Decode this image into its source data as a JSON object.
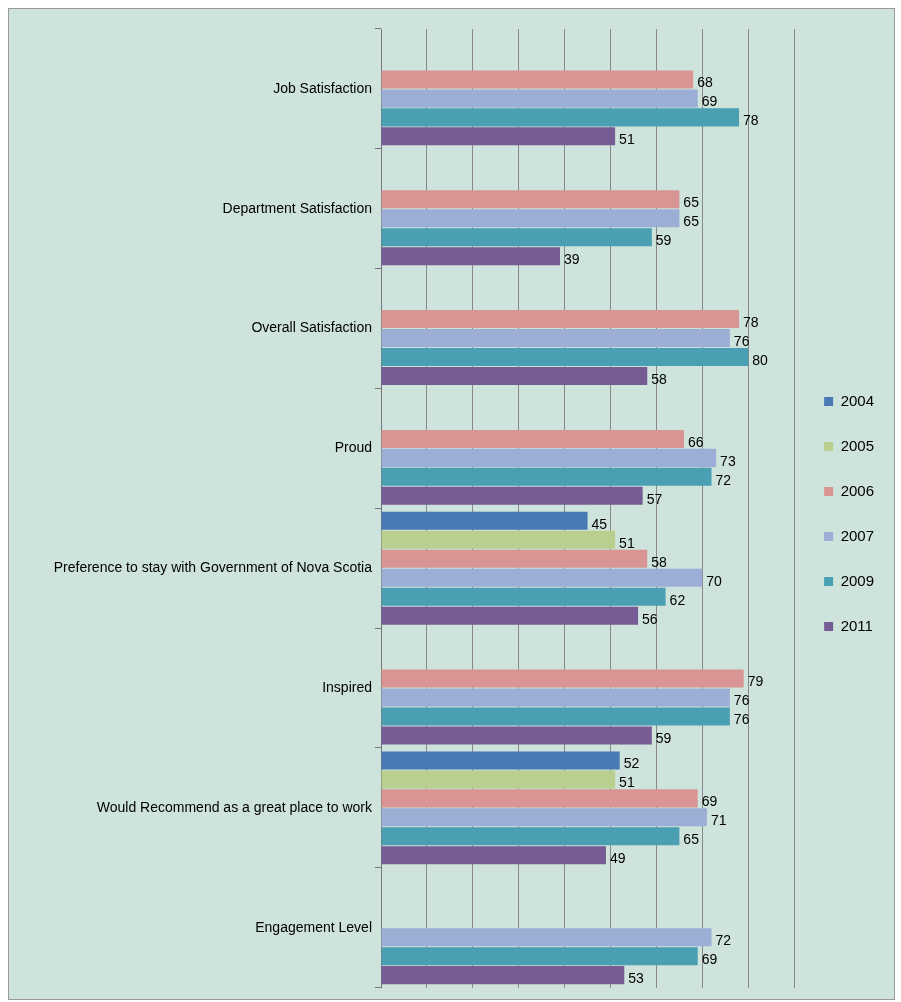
{
  "chart_data": {
    "type": "bar",
    "orientation": "horizontal",
    "categories": [
      "Job Satisfaction",
      "Department Satisfaction",
      "Overall Satisfaction",
      "Proud",
      "Preference to stay with Government of Nova Scotia",
      "Inspired",
      "Would Recommend as a great place to work",
      "Engagement Level"
    ],
    "series": [
      {
        "name": "2004",
        "color": "#4a7ab5",
        "values": [
          null,
          null,
          null,
          null,
          45,
          null,
          52,
          null
        ]
      },
      {
        "name": "2005",
        "color": "#b9cf8f",
        "values": [
          null,
          null,
          null,
          null,
          51,
          null,
          51,
          null
        ]
      },
      {
        "name": "2006",
        "color": "#d99594",
        "values": [
          68,
          65,
          78,
          66,
          58,
          79,
          69,
          null
        ]
      },
      {
        "name": "2007",
        "color": "#9daed6",
        "values": [
          69,
          65,
          76,
          73,
          70,
          76,
          71,
          72
        ]
      },
      {
        "name": "2009",
        "color": "#4a9fb3",
        "values": [
          78,
          59,
          80,
          72,
          62,
          76,
          65,
          69
        ]
      },
      {
        "name": "2011",
        "color": "#775b95",
        "values": [
          51,
          39,
          58,
          57,
          56,
          59,
          49,
          53
        ]
      }
    ],
    "xlim": [
      0,
      90
    ],
    "xticks": [
      0,
      10,
      20,
      30,
      40,
      50,
      60,
      70,
      80,
      90
    ],
    "tick_labels": "y",
    "grid": "x",
    "legend": "right",
    "data_labels": true
  }
}
